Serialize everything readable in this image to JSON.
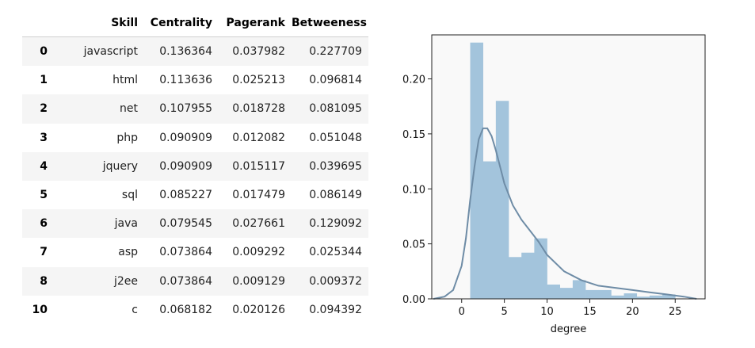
{
  "table": {
    "columns": [
      "",
      "Skill",
      "Centrality",
      "Pagerank",
      "Betweeness"
    ],
    "rows": [
      [
        "0",
        "javascript",
        "0.136364",
        "0.037982",
        "0.227709"
      ],
      [
        "1",
        "html",
        "0.113636",
        "0.025213",
        "0.096814"
      ],
      [
        "2",
        "net",
        "0.107955",
        "0.018728",
        "0.081095"
      ],
      [
        "3",
        "php",
        "0.090909",
        "0.012082",
        "0.051048"
      ],
      [
        "4",
        "jquery",
        "0.090909",
        "0.015117",
        "0.039695"
      ],
      [
        "5",
        "sql",
        "0.085227",
        "0.017479",
        "0.086149"
      ],
      [
        "6",
        "java",
        "0.079545",
        "0.027661",
        "0.129092"
      ],
      [
        "7",
        "asp",
        "0.073864",
        "0.009292",
        "0.025344"
      ],
      [
        "8",
        "j2ee",
        "0.073864",
        "0.009129",
        "0.009372"
      ],
      [
        "10",
        "c",
        "0.068182",
        "0.020126",
        "0.094392"
      ]
    ]
  },
  "chart_data": {
    "type": "bar",
    "title": "",
    "xlabel": "degree",
    "ylabel": "",
    "xlim": [
      -3.5,
      28.5
    ],
    "ylim": [
      0,
      0.24
    ],
    "x_ticks": [
      0,
      5,
      10,
      15,
      20,
      25
    ],
    "y_ticks": [
      0.0,
      0.05,
      0.1,
      0.15,
      0.2
    ],
    "y_tick_labels": [
      "0.00",
      "0.05",
      "0.10",
      "0.15",
      "0.20"
    ],
    "bar_color": "#a3c4dc",
    "kde_color": "#6e8ca6",
    "background": "#f9f9f9",
    "histogram": {
      "bin_edges": [
        1.0,
        2.5,
        4.0,
        5.5,
        7.0,
        8.5,
        10.0,
        11.5,
        13.0,
        14.5,
        16.0,
        17.5,
        19.0,
        20.5,
        22.0,
        23.5,
        25.0
      ],
      "values": [
        0.233,
        0.125,
        0.18,
        0.038,
        0.042,
        0.055,
        0.013,
        0.01,
        0.017,
        0.008,
        0.008,
        0.003,
        0.005,
        0.002,
        0.003,
        0.004
      ]
    },
    "kde": {
      "x": [
        -3.3,
        -2,
        -1,
        0,
        0.5,
        1,
        1.5,
        2,
        2.5,
        3,
        3.5,
        4,
        4.5,
        5,
        6,
        7,
        8,
        9,
        10,
        12,
        14,
        16,
        18,
        20,
        22,
        24,
        26,
        27.5
      ],
      "y": [
        0.0,
        0.002,
        0.008,
        0.03,
        0.055,
        0.09,
        0.12,
        0.145,
        0.155,
        0.155,
        0.148,
        0.135,
        0.12,
        0.105,
        0.085,
        0.072,
        0.062,
        0.052,
        0.04,
        0.025,
        0.017,
        0.012,
        0.01,
        0.008,
        0.006,
        0.004,
        0.002,
        0.0
      ]
    }
  }
}
